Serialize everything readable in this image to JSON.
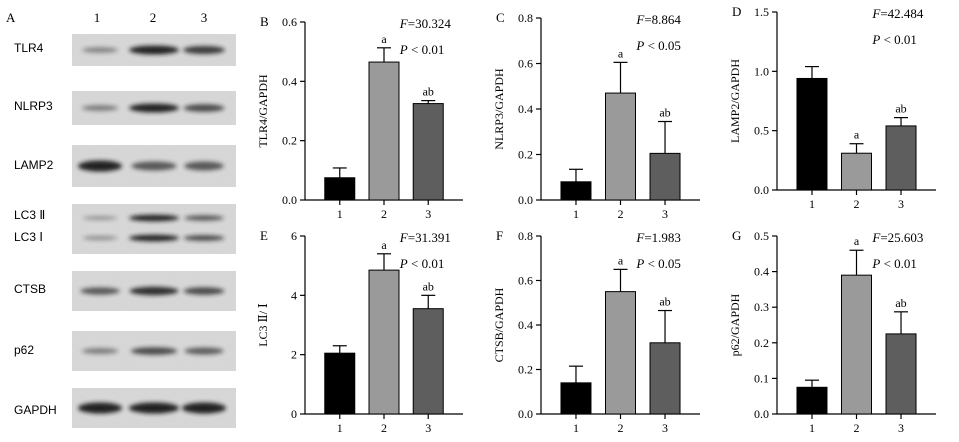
{
  "western_blot": {
    "panel_letter": "A",
    "lane_labels": [
      "1",
      "2",
      "3"
    ],
    "rows": [
      {
        "label": "TLR4",
        "intensity": [
          0.25,
          1.0,
          0.8
        ]
      },
      {
        "label": "NLRP3",
        "intensity": [
          0.3,
          1.0,
          0.7
        ]
      },
      {
        "label": "LAMP2",
        "intensity": [
          1.0,
          0.6,
          0.6
        ]
      },
      {
        "label": "LC3 II/LC3 I",
        "label_top": "LC3 Ⅱ",
        "label_bottom": "LC3 Ⅰ",
        "intensity": [
          0.3,
          1.0,
          0.75
        ]
      },
      {
        "label": "CTSB",
        "intensity": [
          0.6,
          0.9,
          0.7
        ]
      },
      {
        "label": "p62",
        "intensity": [
          0.3,
          0.7,
          0.55
        ]
      },
      {
        "label": "GAPDH",
        "intensity": [
          1.0,
          1.0,
          1.0
        ]
      }
    ]
  },
  "chart_data": [
    {
      "panel": "B",
      "type": "bar",
      "categories": [
        "1",
        "2",
        "3"
      ],
      "values": [
        0.075,
        0.465,
        0.325
      ],
      "errors": [
        0.033,
        0.048,
        0.01
      ],
      "sig": [
        "",
        "a",
        "ab"
      ],
      "ylabel": "TLR4/GAPDH",
      "ylim": [
        0,
        0.6
      ],
      "yticks": [
        "0.0",
        "0.2",
        "0.4",
        "0.6"
      ],
      "stat_f_label": "F",
      "stat_f": "=30.324",
      "stat_p_label": "P",
      "stat_p": " < 0.01"
    },
    {
      "panel": "C",
      "type": "bar",
      "categories": [
        "1",
        "2",
        "3"
      ],
      "values": [
        0.08,
        0.47,
        0.205
      ],
      "errors": [
        0.055,
        0.135,
        0.14
      ],
      "sig": [
        "",
        "a",
        "ab"
      ],
      "ylabel": "NLRP3/GAPDH",
      "ylim": [
        0,
        0.8
      ],
      "yticks": [
        "0.0",
        "0.2",
        "0.4",
        "0.6",
        "0.8"
      ],
      "stat_f_label": "F",
      "stat_f": "=8.864",
      "stat_p_label": "P",
      "stat_p": " < 0.05"
    },
    {
      "panel": "D",
      "type": "bar",
      "categories": [
        "1",
        "2",
        "3"
      ],
      "values": [
        0.94,
        0.31,
        0.54
      ],
      "errors": [
        0.1,
        0.08,
        0.07
      ],
      "sig": [
        "",
        "a",
        "ab"
      ],
      "ylabel": "LAMP2/GAPDH",
      "ylim": [
        0,
        1.5
      ],
      "yticks": [
        "0.0",
        "0.5",
        "1.0",
        "1.5"
      ],
      "stat_f_label": "F",
      "stat_f": "=42.484",
      "stat_p_label": "P",
      "stat_p": " < 0.01"
    },
    {
      "panel": "E",
      "type": "bar",
      "categories": [
        "1",
        "2",
        "3"
      ],
      "values": [
        2.05,
        4.85,
        3.55
      ],
      "errors": [
        0.25,
        0.55,
        0.45
      ],
      "sig": [
        "",
        "a",
        "ab"
      ],
      "ylabel": "LC3 Ⅱ/ Ⅰ",
      "ylim": [
        0,
        6
      ],
      "yticks": [
        "0",
        "2",
        "4",
        "6"
      ],
      "stat_f_label": "F",
      "stat_f": "=31.391",
      "stat_p_label": "P",
      "stat_p": " < 0.01"
    },
    {
      "panel": "F",
      "type": "bar",
      "categories": [
        "1",
        "2",
        "3"
      ],
      "values": [
        0.14,
        0.55,
        0.32
      ],
      "errors": [
        0.075,
        0.1,
        0.145
      ],
      "sig": [
        "",
        "a",
        "ab"
      ],
      "ylabel": "CTSB/GAPDH",
      "ylim": [
        0,
        0.8
      ],
      "yticks": [
        "0.0",
        "0.2",
        "0.4",
        "0.6",
        "0.8"
      ],
      "stat_f_label": "F",
      "stat_f": "=1.983",
      "stat_p_label": "P",
      "stat_p": " < 0.05"
    },
    {
      "panel": "G",
      "type": "bar",
      "categories": [
        "1",
        "2",
        "3"
      ],
      "values": [
        0.075,
        0.39,
        0.225
      ],
      "errors": [
        0.02,
        0.07,
        0.062
      ],
      "sig": [
        "",
        "a",
        "ab"
      ],
      "ylabel": "p62/GAPDH",
      "ylim": [
        0,
        0.5
      ],
      "yticks": [
        "0.0",
        "0.1",
        "0.2",
        "0.3",
        "0.4",
        "0.5"
      ],
      "stat_f_label": "F",
      "stat_f": "=25.603",
      "stat_p_label": "P",
      "stat_p": " < 0.01"
    }
  ],
  "colors": {
    "bar1": "#000000",
    "bar2": "#9a9a9a",
    "bar3": "#5e5e5e",
    "blot_bg": "#d9d9d9",
    "band": "#1a1a1a"
  }
}
